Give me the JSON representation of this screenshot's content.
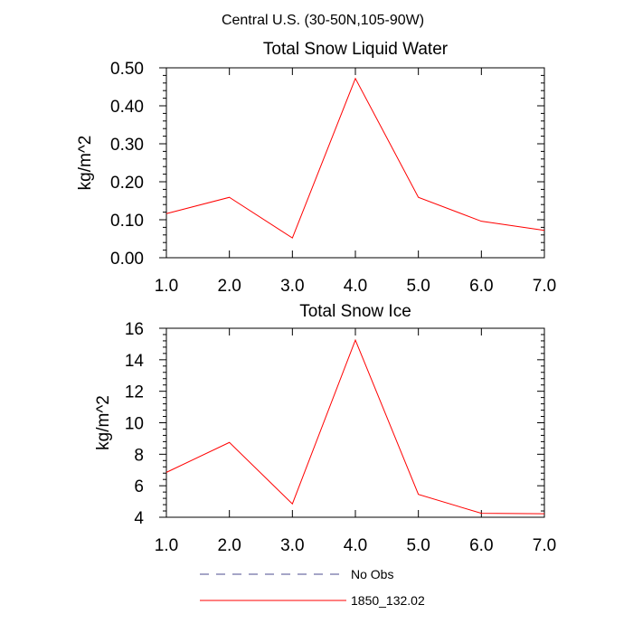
{
  "figure": {
    "title": "Central U.S. (30-50N,105-90W)"
  },
  "chart_data": [
    {
      "type": "line",
      "title": "Total Snow Liquid Water",
      "xlabel": "",
      "ylabel": "kg/m^2",
      "xlim": [
        1,
        7
      ],
      "ylim": [
        0,
        0.5
      ],
      "x_ticks": [
        1,
        2,
        3,
        4,
        5,
        6,
        7
      ],
      "x_tick_labels": [
        "1.0",
        "2.0",
        "3.0",
        "4.0",
        "5.0",
        "6.0",
        "7.0"
      ],
      "y_ticks": [
        0,
        0.1,
        0.2,
        0.3,
        0.4,
        0.5
      ],
      "y_tick_labels": [
        "0.00",
        "0.10",
        "0.20",
        "0.30",
        "0.40",
        "0.50"
      ],
      "x": [
        1,
        2,
        3,
        4,
        5,
        6,
        7
      ],
      "series": [
        {
          "name": "1850_132.02",
          "color": "#ff0000",
          "dash": "solid",
          "values": [
            0.116,
            0.159,
            0.052,
            0.472,
            0.159,
            0.096,
            0.072
          ]
        }
      ]
    },
    {
      "type": "line",
      "title": "Total Snow Ice",
      "xlabel": "",
      "ylabel": "kg/m^2",
      "xlim": [
        1,
        7
      ],
      "ylim": [
        4,
        16
      ],
      "x_ticks": [
        1,
        2,
        3,
        4,
        5,
        6,
        7
      ],
      "x_tick_labels": [
        "1.0",
        "2.0",
        "3.0",
        "4.0",
        "5.0",
        "6.0",
        "7.0"
      ],
      "y_ticks": [
        4,
        6,
        8,
        10,
        12,
        14,
        16
      ],
      "y_tick_labels": [
        "4",
        "6",
        "8",
        "10",
        "12",
        "14",
        "16"
      ],
      "x": [
        1,
        2,
        3,
        4,
        5,
        6,
        7
      ],
      "series": [
        {
          "name": "1850_132.02",
          "color": "#ff0000",
          "dash": "solid",
          "values": [
            6.85,
            8.75,
            4.85,
            15.25,
            5.45,
            4.25,
            4.22
          ]
        }
      ]
    }
  ],
  "legend": {
    "placement": "bottom-center",
    "entries": [
      {
        "label": "No Obs",
        "color": "#4b4b8f",
        "dash": "dashed"
      },
      {
        "label": "1850_132.02",
        "color": "#ff0000",
        "dash": "solid"
      }
    ]
  }
}
